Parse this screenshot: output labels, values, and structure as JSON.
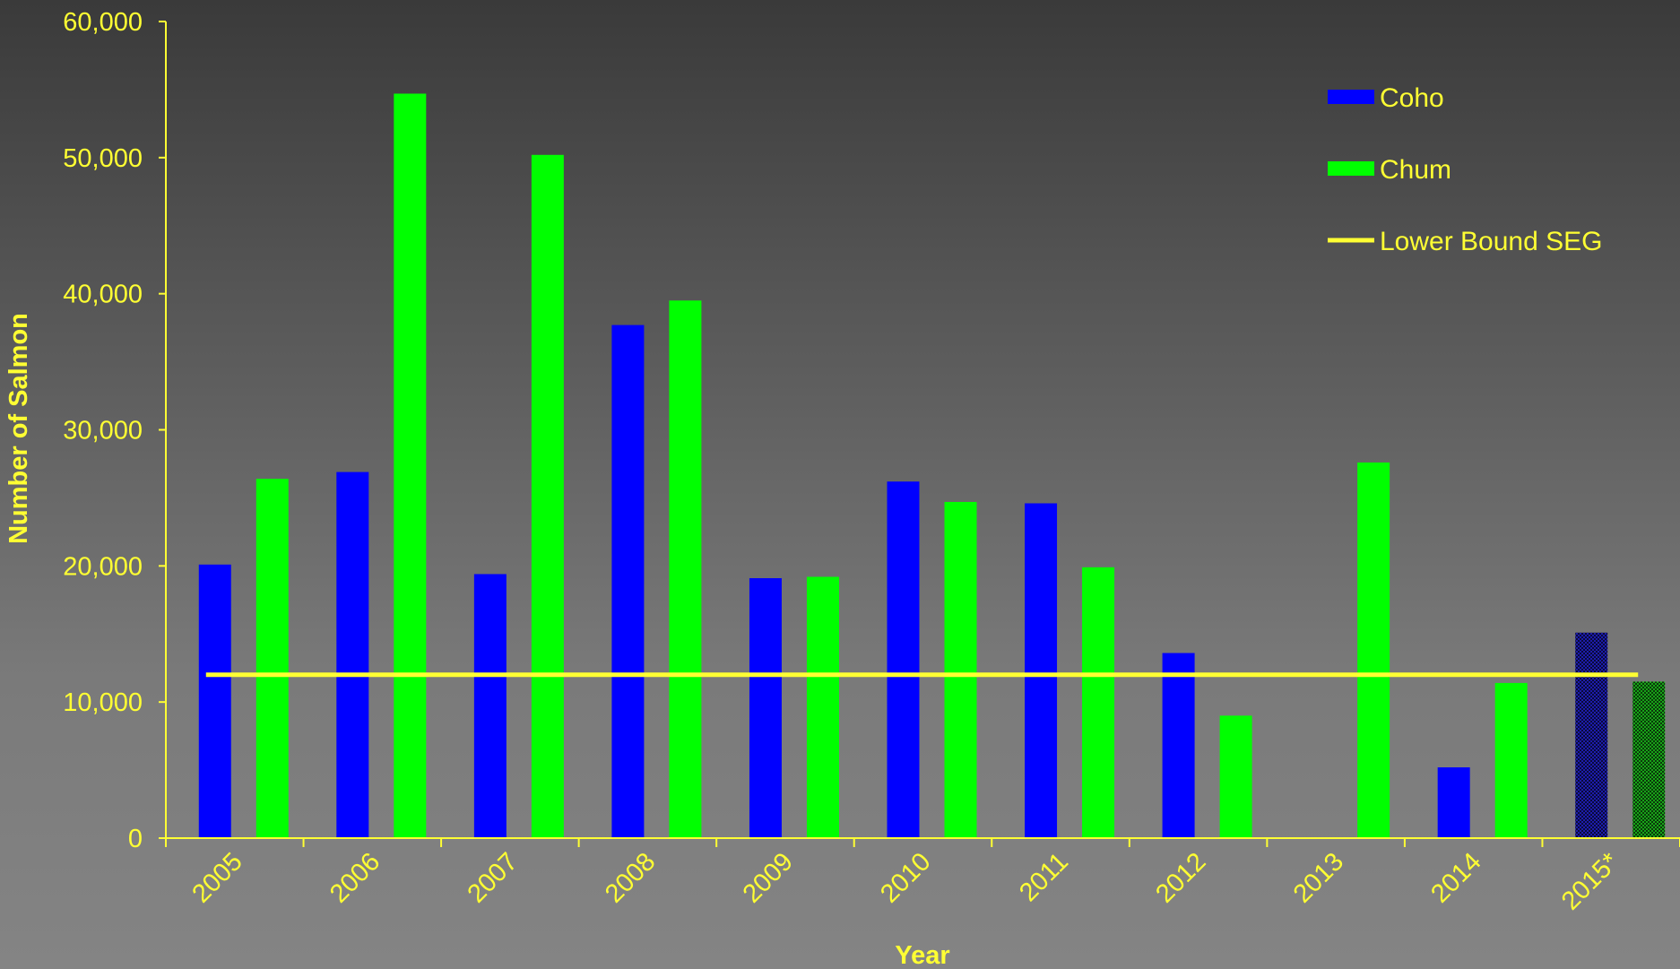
{
  "chart_data": {
    "type": "bar",
    "title": "",
    "xlabel": "Year",
    "ylabel": "Number of Salmon",
    "ylim": [
      0,
      60000
    ],
    "yticks": [
      "0",
      "10,000",
      "20,000",
      "30,000",
      "40,000",
      "50,000",
      "60,000"
    ],
    "categories": [
      "2005",
      "2006",
      "2007",
      "2008",
      "2009",
      "2010",
      "2011",
      "2012",
      "2013",
      "2014",
      "2015*"
    ],
    "series": [
      {
        "name": "Coho",
        "color": "#0000ff",
        "values": [
          20100,
          26900,
          19400,
          37700,
          19100,
          26200,
          24600,
          13600,
          null,
          5200,
          15100
        ]
      },
      {
        "name": "Chum",
        "color": "#00ff00",
        "values": [
          26400,
          54700,
          50200,
          39500,
          19200,
          24700,
          19900,
          9000,
          27600,
          11400,
          11500
        ]
      }
    ],
    "partial_category": "2015*",
    "reference_line": {
      "name": "Lower Bound SEG",
      "value": 12000,
      "color": "#ffff33"
    },
    "legend_position": "top-right",
    "grid": false,
    "axis_color": "#ffff33"
  }
}
